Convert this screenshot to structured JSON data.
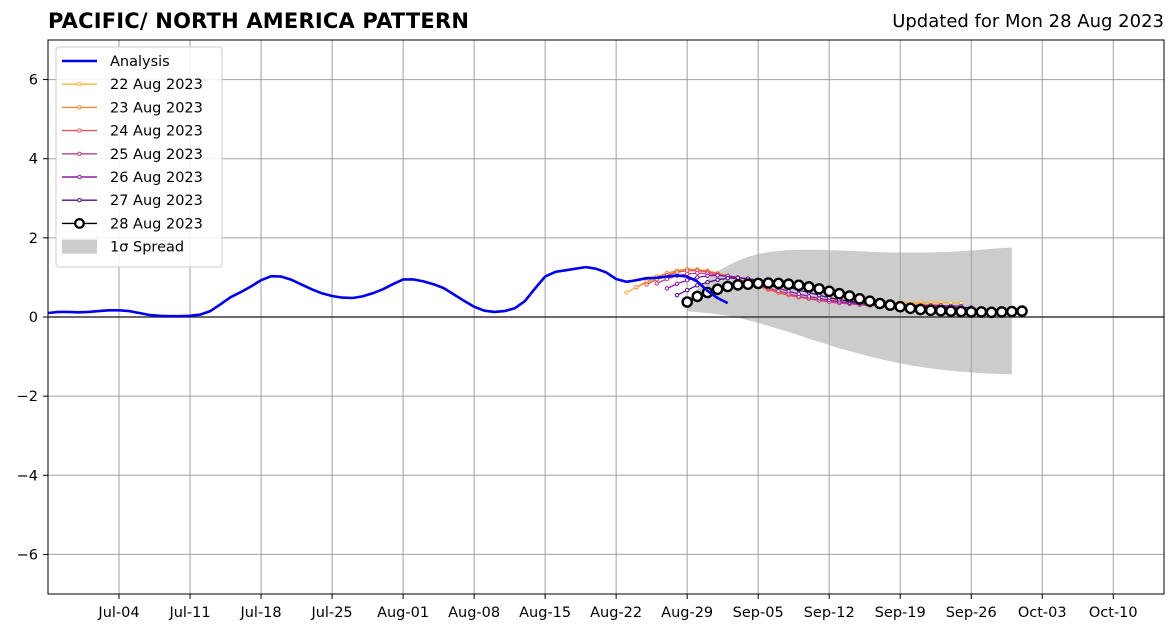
{
  "header": {
    "title": "PACIFIC/ NORTH AMERICA PATTERN",
    "updated": "Updated for Mon 28 Aug 2023"
  },
  "chart_data": {
    "type": "line",
    "title": "PACIFIC/ NORTH AMERICA PATTERN",
    "subtitle": "Updated for Mon 28 Aug 2023",
    "xlabel": "",
    "ylabel": "",
    "xlim": [
      "2023-06-27",
      "2023-10-15"
    ],
    "ylim": [
      -7,
      7
    ],
    "grid": true,
    "legend_position": "top-left",
    "x_ticks": [
      "Jul-04",
      "Jul-11",
      "Jul-18",
      "Jul-25",
      "Aug-01",
      "Aug-08",
      "Aug-15",
      "Aug-22",
      "Aug-29",
      "Sep-05",
      "Sep-12",
      "Sep-19",
      "Sep-26",
      "Oct-03",
      "Oct-10"
    ],
    "y_ticks": [
      -6,
      -4,
      -2,
      0,
      2,
      4,
      6
    ],
    "y_tick_labels": [
      "−6",
      "−4",
      "−2",
      "0",
      "2",
      "4",
      "6"
    ],
    "series": [
      {
        "name": "Analysis",
        "color": "#0000ee",
        "start": "2023-06-27",
        "values": [
          0.1,
          0.13,
          0.13,
          0.12,
          0.13,
          0.15,
          0.17,
          0.17,
          0.15,
          0.1,
          0.05,
          0.03,
          0.02,
          0.02,
          0.03,
          0.06,
          0.15,
          0.32,
          0.5,
          0.63,
          0.77,
          0.93,
          1.03,
          1.02,
          0.94,
          0.82,
          0.7,
          0.6,
          0.53,
          0.49,
          0.48,
          0.52,
          0.6,
          0.7,
          0.83,
          0.95,
          0.95,
          0.9,
          0.83,
          0.73,
          0.57,
          0.41,
          0.26,
          0.16,
          0.13,
          0.15,
          0.22,
          0.4,
          0.72,
          1.02,
          1.14,
          1.18,
          1.22,
          1.26,
          1.22,
          1.13,
          0.96,
          0.89,
          0.93,
          0.98,
          0.99,
          1.02,
          1.05,
          1.02,
          0.9,
          0.66,
          0.48,
          0.35
        ]
      },
      {
        "name": "22 Aug 2023",
        "color": "#f5b53b",
        "start": "2023-08-23",
        "values": [
          0.62,
          0.75,
          0.87,
          0.98,
          1.07,
          1.14,
          1.19,
          1.2,
          1.17,
          1.11,
          1.05,
          0.97,
          0.89,
          0.79,
          0.69,
          0.61,
          0.55,
          0.51,
          0.48,
          0.46,
          0.44,
          0.43,
          0.41,
          0.4,
          0.39,
          0.38,
          0.38,
          0.37,
          0.37,
          0.37,
          0.37,
          0.37,
          0.36,
          0.35
        ]
      },
      {
        "name": "23 Aug 2023",
        "color": "#ef8a3c",
        "start": "2023-08-24",
        "values": [
          0.75,
          0.9,
          1.02,
          1.11,
          1.17,
          1.21,
          1.2,
          1.16,
          1.1,
          1.03,
          0.95,
          0.87,
          0.78,
          0.69,
          0.61,
          0.55,
          0.5,
          0.46,
          0.43,
          0.41,
          0.39,
          0.37,
          0.36,
          0.35,
          0.34,
          0.33,
          0.33,
          0.32,
          0.32,
          0.31,
          0.31
        ]
      },
      {
        "name": "24 Aug 2023",
        "color": "#e0565a",
        "start": "2023-08-25",
        "values": [
          0.82,
          0.95,
          1.06,
          1.13,
          1.17,
          1.17,
          1.14,
          1.09,
          1.02,
          0.95,
          0.87,
          0.79,
          0.7,
          0.62,
          0.55,
          0.5,
          0.46,
          0.42,
          0.39,
          0.36,
          0.34,
          0.32,
          0.31,
          0.3,
          0.29,
          0.29,
          0.28,
          0.28,
          0.28,
          0.28,
          0.27
        ]
      },
      {
        "name": "25 Aug 2023",
        "color": "#bf3b86",
        "start": "2023-08-26",
        "values": [
          0.85,
          0.96,
          1.04,
          1.09,
          1.11,
          1.1,
          1.06,
          1.01,
          0.95,
          0.88,
          0.81,
          0.73,
          0.66,
          0.59,
          0.52,
          0.47,
          0.42,
          0.38,
          0.35,
          0.33,
          0.31,
          0.29,
          0.28,
          0.27,
          0.27,
          0.27,
          0.27,
          0.27,
          0.27,
          0.27
        ]
      },
      {
        "name": "26 Aug 2023",
        "color": "#8c1aa8",
        "start": "2023-08-27",
        "values": [
          0.72,
          0.84,
          0.93,
          1.0,
          1.04,
          1.05,
          1.04,
          1.0,
          0.95,
          0.88,
          0.81,
          0.73,
          0.65,
          0.58,
          0.52,
          0.47,
          0.43,
          0.39,
          0.36,
          0.34,
          0.32,
          0.31,
          0.3,
          0.3,
          0.29,
          0.29,
          0.29,
          0.29,
          0.28,
          0.28
        ]
      },
      {
        "name": "27 Aug 2023",
        "color": "#4b0c8f",
        "start": "2023-08-28",
        "values": [
          0.55,
          0.68,
          0.8,
          0.88,
          0.94,
          0.98,
          0.99,
          0.97,
          0.93,
          0.88,
          0.82,
          0.75,
          0.68,
          0.62,
          0.55,
          0.49,
          0.44,
          0.4,
          0.36,
          0.33,
          0.3,
          0.28,
          0.27,
          0.26,
          0.25,
          0.25,
          0.25,
          0.24,
          0.24,
          0.24
        ]
      },
      {
        "name": "28 Aug 2023",
        "color": "#000000",
        "start": "2023-08-29",
        "values": [
          0.38,
          0.52,
          0.62,
          0.7,
          0.77,
          0.81,
          0.83,
          0.85,
          0.86,
          0.85,
          0.83,
          0.8,
          0.76,
          0.71,
          0.65,
          0.59,
          0.53,
          0.46,
          0.4,
          0.34,
          0.3,
          0.26,
          0.22,
          0.19,
          0.17,
          0.16,
          0.15,
          0.14,
          0.13,
          0.13,
          0.12,
          0.13,
          0.14,
          0.15
        ]
      }
    ],
    "spread": {
      "name": "1σ Spread",
      "color": "#cccccc",
      "start": "2023-08-29",
      "upper": [
        0.4,
        0.7,
        0.95,
        1.15,
        1.3,
        1.42,
        1.52,
        1.59,
        1.64,
        1.67,
        1.69,
        1.7,
        1.7,
        1.7,
        1.69,
        1.68,
        1.67,
        1.66,
        1.65,
        1.64,
        1.63,
        1.63,
        1.63,
        1.63,
        1.63,
        1.64,
        1.65,
        1.66,
        1.68,
        1.7,
        1.72,
        1.74,
        1.76
      ],
      "lower": [
        0.15,
        0.12,
        0.1,
        0.07,
        0.03,
        -0.02,
        -0.08,
        -0.15,
        -0.22,
        -0.3,
        -0.38,
        -0.46,
        -0.55,
        -0.63,
        -0.71,
        -0.79,
        -0.86,
        -0.93,
        -1.0,
        -1.06,
        -1.12,
        -1.17,
        -1.22,
        -1.26,
        -1.3,
        -1.33,
        -1.36,
        -1.38,
        -1.4,
        -1.42,
        -1.43,
        -1.44,
        -1.45
      ]
    }
  }
}
